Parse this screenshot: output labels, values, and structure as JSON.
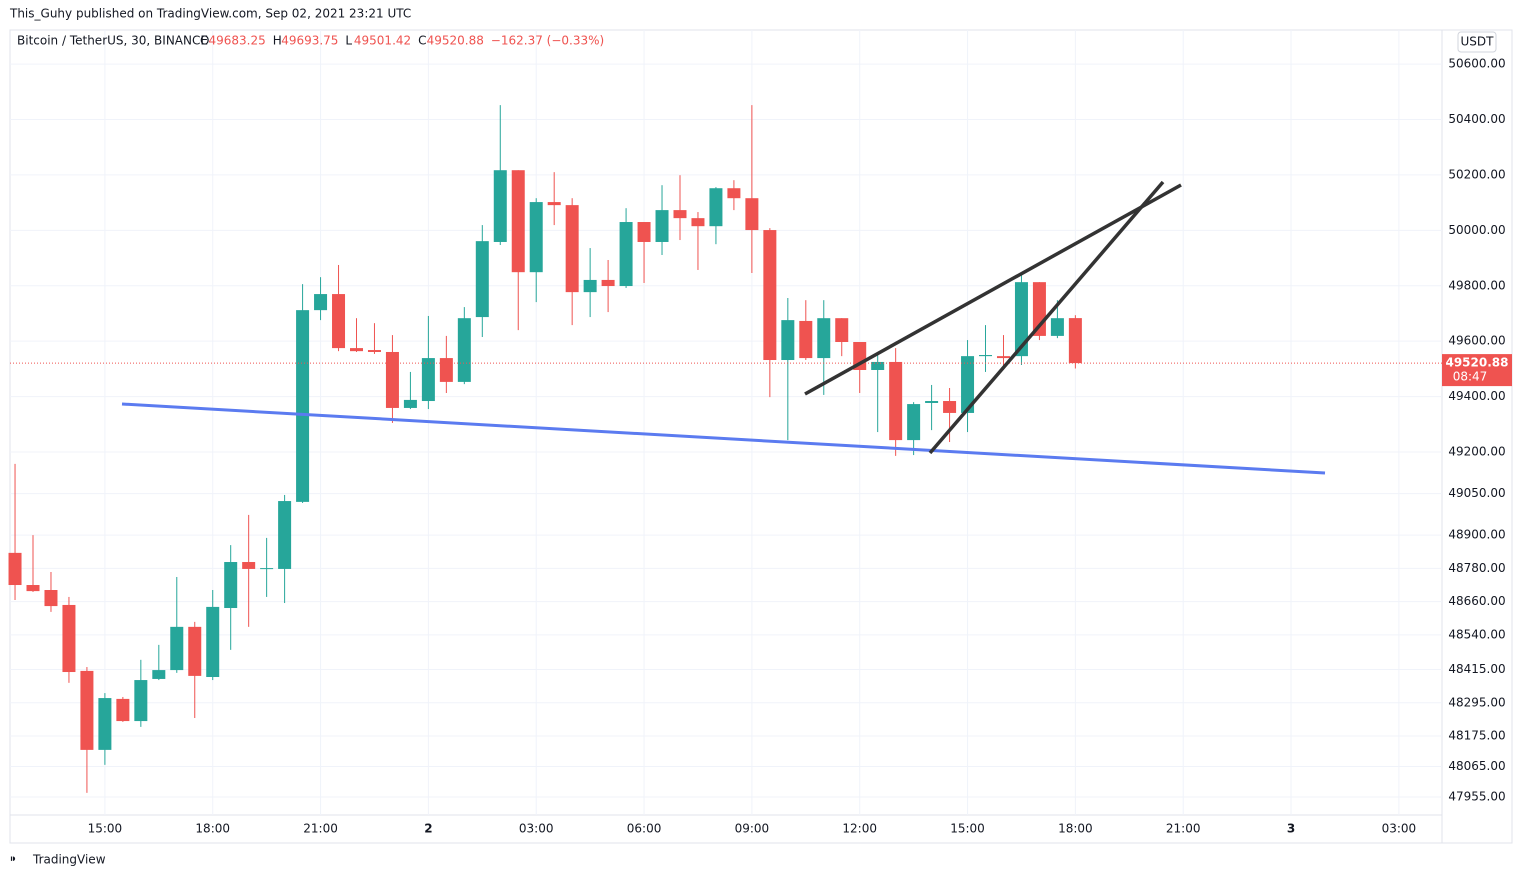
{
  "header": {
    "published": "This_Guhy published on TradingView.com, Sep 02, 2021 23:21 UTC",
    "symbol": "Bitcoin / TetherUS, 30, BINANCE",
    "ohlc": [
      {
        "label": "O",
        "value": "49683.25"
      },
      {
        "label": "H",
        "value": "49693.75"
      },
      {
        "label": "L",
        "value": "49501.42"
      },
      {
        "label": "C",
        "value": "49520.88"
      }
    ],
    "change": "−162.37 (−0.33%)",
    "currency": "USDT",
    "countdown": "08:47",
    "brand": "TradingView"
  },
  "chart_data": {
    "type": "candlestick",
    "up_color": "#26a69a",
    "down_color": "#ef5350",
    "last_price": 49520.88,
    "open": [
      48836,
      48720,
      48702,
      48648,
      48410,
      48125,
      48309,
      48229,
      48381,
      48413,
      48569,
      48388,
      48637,
      48803,
      48778,
      48778,
      49020,
      49712,
      49770,
      49575,
      49568,
      49561,
      49359,
      49384,
      49539,
      49453,
      49687,
      49958,
      50217,
      49849,
      50102,
      50091,
      49777,
      49821,
      49799,
      50030,
      49958,
      50073,
      50044,
      50015,
      50152,
      50116,
      50001,
      49532,
      49673,
      49539,
      49683,
      49597,
      49496,
      49525,
      49243,
      49377,
      49384,
      49341,
      49546,
      49546,
      49546,
      49813,
      49619,
      49683.25
    ],
    "high": [
      49157,
      48900,
      48767,
      48677,
      48424,
      48330,
      48316,
      48450,
      48504,
      48749,
      48587,
      48702,
      48864,
      48973,
      48890,
      49045,
      49806,
      49831,
      49875,
      49683,
      49665,
      49622,
      49489,
      49691,
      49619,
      49723,
      50019,
      50452,
      50217,
      50116,
      50210,
      50116,
      49936,
      49893,
      50080,
      50030,
      50163,
      50199,
      50066,
      50156,
      50181,
      50452,
      50008,
      49756,
      49748,
      49748,
      49683,
      49597,
      49550,
      49575,
      49380,
      49442,
      49431,
      49604,
      49658,
      49622,
      49849,
      49813,
      49748,
      49693.75
    ],
    "low": [
      48666,
      48695,
      48623,
      48367,
      47970,
      48071,
      48226,
      48208,
      48377,
      48403,
      48240,
      48377,
      48486,
      48569,
      48677,
      48655,
      49016,
      49676,
      49564,
      49561,
      49554,
      49305,
      49355,
      49355,
      49413,
      49445,
      49615,
      49947,
      49640,
      49741,
      50019,
      49658,
      49687,
      49705,
      49792,
      49810,
      49911,
      49965,
      49857,
      49950,
      50073,
      49846,
      49398,
      49243,
      49532,
      49406,
      49546,
      49413,
      49272,
      49186,
      49189,
      49279,
      49236,
      49272,
      49489,
      49496,
      49514,
      49604,
      49611,
      49501.42
    ],
    "close": [
      48720,
      48698,
      48644,
      48406,
      48125,
      48312,
      48229,
      48377,
      48413,
      48569,
      48392,
      48641,
      48803,
      48778,
      48781,
      49023,
      49712,
      49770,
      49575,
      49564,
      49561,
      49359,
      49388,
      49539,
      49453,
      49683,
      49961,
      50217,
      49849,
      50102,
      50091,
      49777,
      49821,
      49799,
      50030,
      49958,
      50073,
      50044,
      50015,
      50152,
      50116,
      50001,
      49532,
      49676,
      49539,
      49683,
      49597,
      49496,
      49525,
      49243,
      49373,
      49384,
      49341,
      49546,
      49550,
      49539,
      49813,
      49619,
      49683,
      49520.88
    ],
    "xlim": [
      -0.28,
      79.4
    ],
    "xticks": [
      {
        "value": 5,
        "label": "15:00"
      },
      {
        "value": 11,
        "label": "18:00"
      },
      {
        "value": 17,
        "label": "21:00"
      },
      {
        "value": 23,
        "label": "2"
      },
      {
        "value": 29,
        "label": "03:00"
      },
      {
        "value": 35,
        "label": "06:00"
      },
      {
        "value": 41,
        "label": "09:00"
      },
      {
        "value": 47,
        "label": "12:00"
      },
      {
        "value": 53,
        "label": "15:00"
      },
      {
        "value": 59,
        "label": "18:00"
      },
      {
        "value": 65,
        "label": "21:00"
      },
      {
        "value": 71,
        "label": "3"
      },
      {
        "value": 77,
        "label": "03:00"
      }
    ],
    "ylim": [
      47890,
      50723
    ],
    "yticks": [
      {
        "value": 47955,
        "label": "47955.00"
      },
      {
        "value": 48065,
        "label": "48065.00"
      },
      {
        "value": 48175,
        "label": "48175.00"
      },
      {
        "value": 48295,
        "label": "48295.00"
      },
      {
        "value": 48415,
        "label": "48415.00"
      },
      {
        "value": 48540,
        "label": "48540.00"
      },
      {
        "value": 48660,
        "label": "48660.00"
      },
      {
        "value": 48780,
        "label": "48780.00"
      },
      {
        "value": 48900,
        "label": "48900.00"
      },
      {
        "value": 49050,
        "label": "49050.00"
      },
      {
        "value": 49200,
        "label": "49200.00"
      },
      {
        "value": 49400,
        "label": "49400.00"
      },
      {
        "value": 49600,
        "label": "49600.00"
      },
      {
        "value": 49800,
        "label": "49800.00"
      },
      {
        "value": 50000,
        "label": "50000.00"
      },
      {
        "value": 50200,
        "label": "50200.00"
      },
      {
        "value": 50400,
        "label": "50400.00"
      },
      {
        "value": 50600,
        "label": "50600.00"
      }
    ],
    "grid": true
  }
}
